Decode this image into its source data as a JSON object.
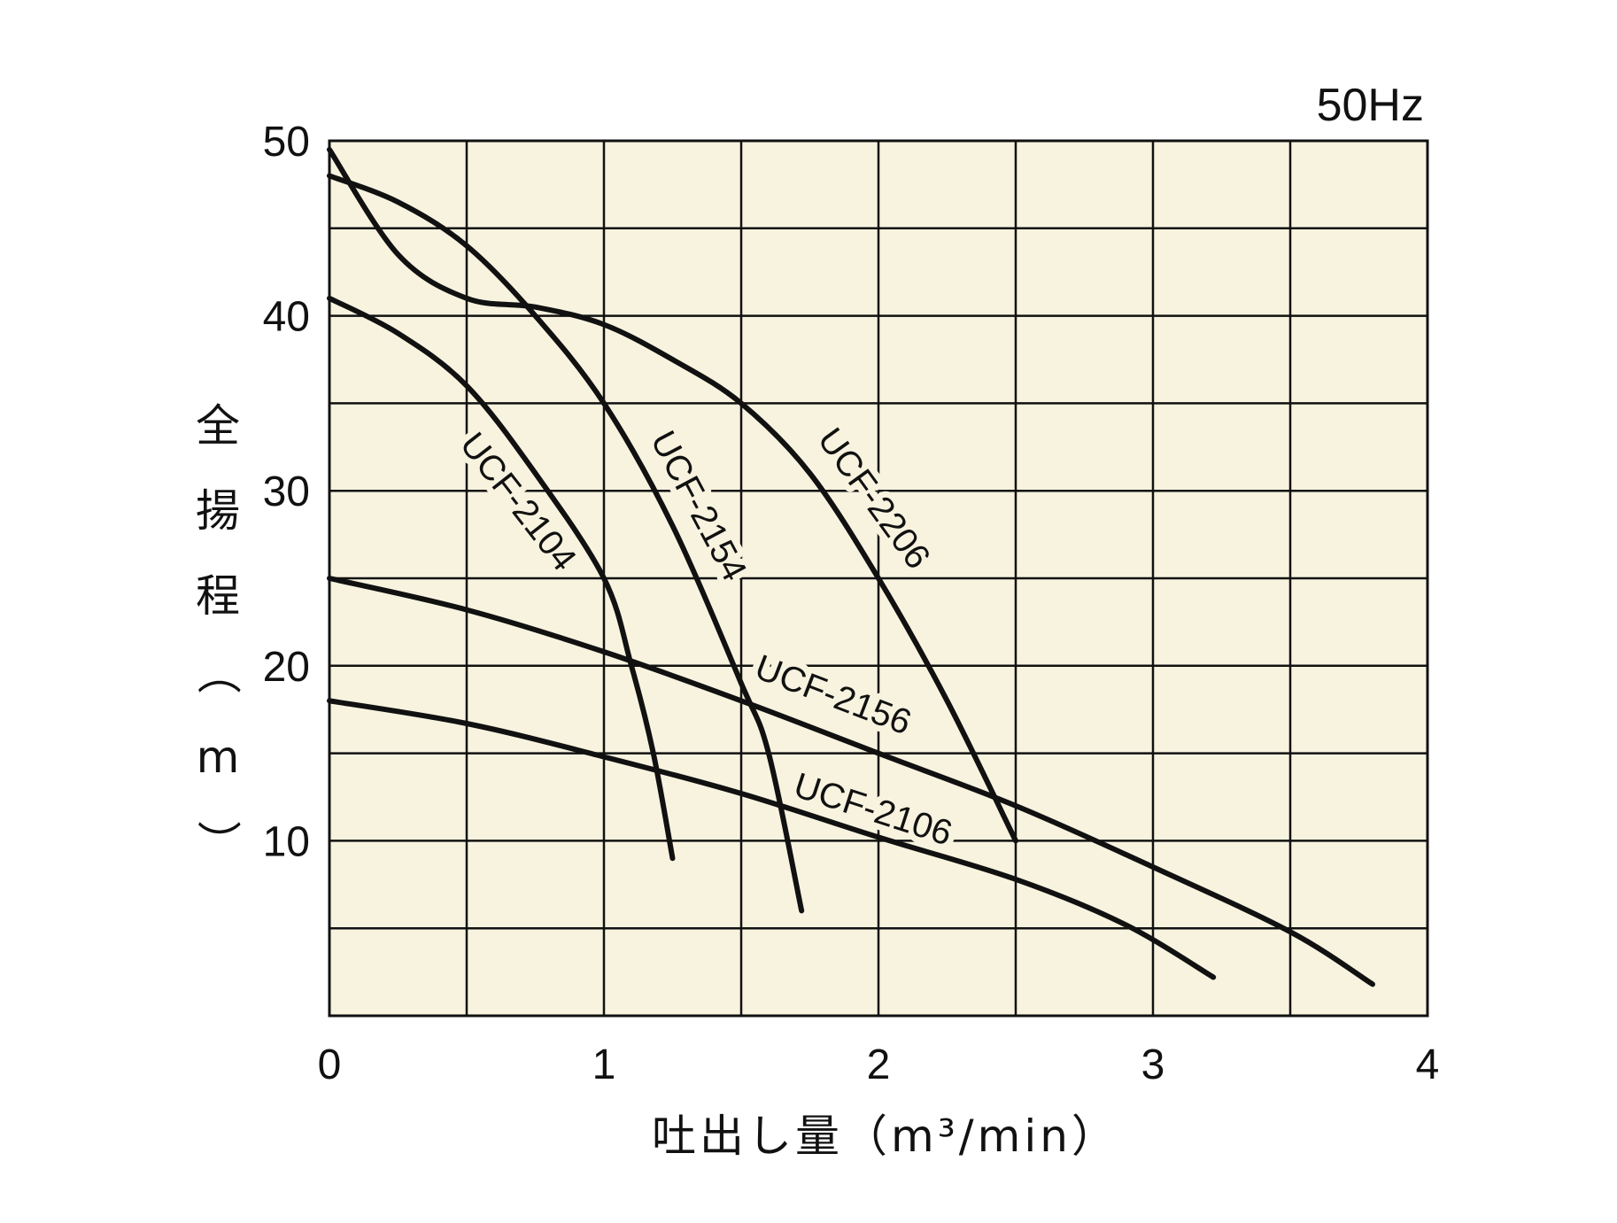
{
  "chart_data": {
    "type": "line",
    "frequency_label": "50Hz",
    "xlabel": "吐出し量（m³/min）",
    "ylabel": "全揚程（m）",
    "xlim": [
      0,
      4
    ],
    "ylim": [
      0,
      50
    ],
    "x_ticks": [
      0,
      1,
      2,
      3,
      4
    ],
    "y_ticks": [
      10,
      20,
      30,
      40,
      50
    ],
    "grid": true,
    "colors": {
      "plot_background": "#f7f3df",
      "grid": "#111111",
      "curve": "#111111"
    },
    "series": [
      {
        "name": "UCF-2104",
        "points": [
          [
            0.0,
            41.0
          ],
          [
            0.25,
            39.0
          ],
          [
            0.5,
            36.0
          ],
          [
            0.75,
            31.0
          ],
          [
            1.0,
            25.0
          ],
          [
            1.1,
            20.0
          ],
          [
            1.18,
            15.0
          ],
          [
            1.25,
            9.0
          ]
        ]
      },
      {
        "name": "UCF-2154",
        "points": [
          [
            0.0,
            48.0
          ],
          [
            0.25,
            46.5
          ],
          [
            0.5,
            44.0
          ],
          [
            0.75,
            40.0
          ],
          [
            1.0,
            35.0
          ],
          [
            1.25,
            28.0
          ],
          [
            1.5,
            19.0
          ],
          [
            1.6,
            15.0
          ],
          [
            1.72,
            6.0
          ]
        ]
      },
      {
        "name": "UCF-2206",
        "points": [
          [
            0.0,
            49.5
          ],
          [
            0.25,
            43.5
          ],
          [
            0.5,
            41.0
          ],
          [
            0.75,
            40.5
          ],
          [
            1.0,
            39.5
          ],
          [
            1.25,
            37.5
          ],
          [
            1.5,
            35.0
          ],
          [
            1.75,
            31.0
          ],
          [
            2.0,
            25.0
          ],
          [
            2.25,
            18.0
          ],
          [
            2.5,
            10.0
          ]
        ]
      },
      {
        "name": "UCF-2156",
        "points": [
          [
            0.0,
            25.0
          ],
          [
            0.5,
            23.2
          ],
          [
            1.0,
            20.8
          ],
          [
            1.5,
            18.0
          ],
          [
            2.0,
            15.0
          ],
          [
            2.5,
            12.0
          ],
          [
            3.0,
            8.5
          ],
          [
            3.5,
            4.8
          ],
          [
            3.8,
            1.8
          ]
        ]
      },
      {
        "name": "UCF-2106",
        "points": [
          [
            0.0,
            18.0
          ],
          [
            0.5,
            16.7
          ],
          [
            1.0,
            14.8
          ],
          [
            1.5,
            12.7
          ],
          [
            2.0,
            10.2
          ],
          [
            2.5,
            7.8
          ],
          [
            2.9,
            5.2
          ],
          [
            3.22,
            2.2
          ]
        ]
      }
    ]
  }
}
